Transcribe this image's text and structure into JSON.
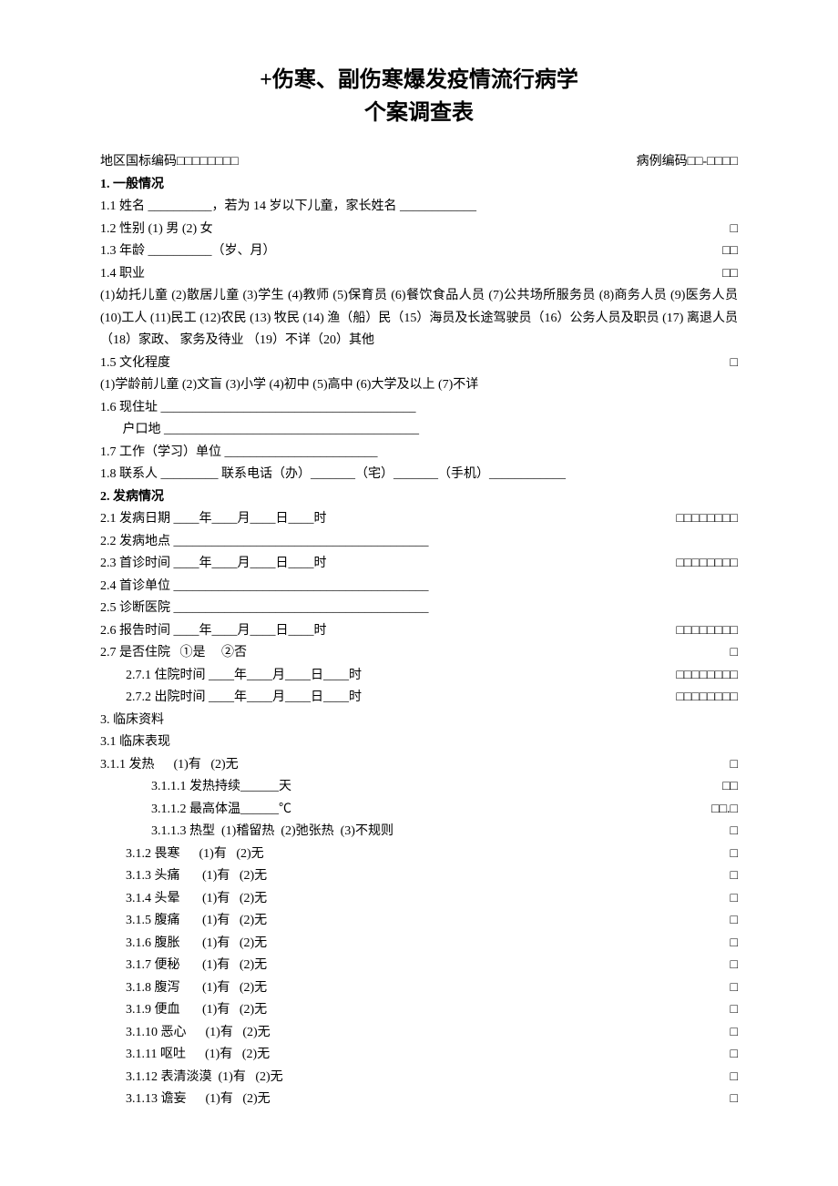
{
  "title_line1": "+伤寒、副伤寒爆发疫情流行病学",
  "title_line2": "个案调查表",
  "header_region_code": "地区国标编码□□□□□□□□",
  "header_case_code": "病例编码□□-□□□□",
  "s1_heading": "1. 一般情况",
  "s1_1": "1.1 姓名 __________，若为 14 岁以下儿童，家长姓名 ____________",
  "s1_2_left": "1.2 性别 (1) 男 (2) 女",
  "s1_2_right": "□",
  "s1_3_left": "1.3 年龄 __________（岁、月）",
  "s1_3_right": "□□",
  "s1_4_left": "1.4 职业",
  "s1_4_right": "□□",
  "s1_4_opts": "(1)幼托儿童 (2)散居儿童 (3)学生 (4)教师 (5)保育员 (6)餐饮食品人员 (7)公共场所服务员 (8)商务人员 (9)医务人员 (10)工人 (11)民工 (12)农民  (13) 牧民 (14) 渔（船）民（15）海员及长途驾驶员（16）公务人员及职员 (17) 离退人员 （18）家政、 家务及待业 （19）不详（20）其他",
  "s1_5_left": "1.5 文化程度",
  "s1_5_right": "□",
  "s1_5_opts": "(1)学龄前儿童 (2)文盲 (3)小学 (4)初中 (5)高中 (6)大学及以上  (7)不详",
  "s1_6_a": "1.6 现住址 ________________________________________",
  "s1_6_b": "       户口地 ________________________________________",
  "s1_7": "1.7 工作（学习）单位 ________________________",
  "s1_8": "1.8 联系人 _________ 联系电话（办）_______（宅）_______（手机）____________",
  "s2_heading": "2. 发病情况",
  "s2_1_left": "2.1 发病日期 ____年____月____日____时",
  "s2_1_right": "□□□□□□□□",
  "s2_2": "2.2 发病地点 ________________________________________",
  "s2_3_left": "2.3 首诊时间 ____年____月____日____时",
  "s2_3_right": "□□□□□□□□",
  "s2_4": "2.4 首诊单位 ________________________________________",
  "s2_5": "2.5 诊断医院 ________________________________________",
  "s2_6_left": "2.6 报告时间 ____年____月____日____时",
  "s2_6_right": "□□□□□□□□",
  "s2_7_left": "2.7 是否住院   ①是     ②否",
  "s2_7_right": "□",
  "s2_7_1_left": "2.7.1 住院时间 ____年____月____日____时",
  "s2_7_1_right": "□□□□□□□□",
  "s2_7_2_left": "2.7.2 出院时间 ____年____月____日____时",
  "s2_7_2_right": "□□□□□□□□",
  "s3_heading": "3. 临床资料",
  "s3_1": "3.1 临床表现",
  "s3_1_1_left": "3.1.1 发热      (1)有   (2)无",
  "s3_1_1_right": "□",
  "s3_1_1_1_left": "3.1.1.1 发热持续______天",
  "s3_1_1_1_right": "□□",
  "s3_1_1_2_left": "3.1.1.2 最高体温______℃",
  "s3_1_1_2_right": "□□.□",
  "s3_1_1_3_left": "3.1.1.3 热型  (1)稽留热  (2)弛张热  (3)不规则",
  "s3_1_1_3_right": "□",
  "s3_1_2_left": "3.1.2 畏寒      (1)有   (2)无",
  "s3_1_2_right": "□",
  "s3_1_3_left": "3.1.3 头痛       (1)有   (2)无",
  "s3_1_3_right": "□",
  "s3_1_4_left": "3.1.4 头晕       (1)有   (2)无",
  "s3_1_4_right": "□",
  "s3_1_5_left": "3.1.5 腹痛       (1)有   (2)无",
  "s3_1_5_right": "□",
  "s3_1_6_left": "3.1.6 腹胀       (1)有   (2)无",
  "s3_1_6_right": "□",
  "s3_1_7_left": "3.1.7 便秘       (1)有   (2)无",
  "s3_1_7_right": "□",
  "s3_1_8_left": "3.1.8 腹泻       (1)有   (2)无",
  "s3_1_8_right": "□",
  "s3_1_9_left": "3.1.9 便血       (1)有   (2)无",
  "s3_1_9_right": "□",
  "s3_1_10_left": "3.1.10 恶心      (1)有   (2)无",
  "s3_1_10_right": "□",
  "s3_1_11_left": "3.1.11 呕吐      (1)有   (2)无",
  "s3_1_11_right": "□",
  "s3_1_12_left": "3.1.12 表清淡漠  (1)有   (2)无",
  "s3_1_12_right": "□",
  "s3_1_13_left": "3.1.13 谵妄      (1)有   (2)无",
  "s3_1_13_right": "□"
}
